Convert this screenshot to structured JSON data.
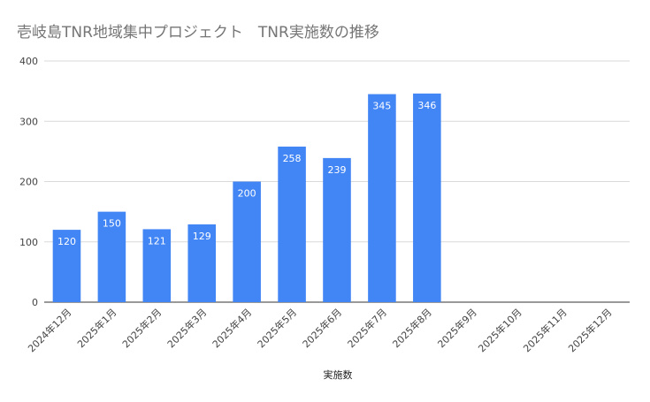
{
  "chart_data": {
    "type": "bar",
    "title": "壱岐島TNR地域集中プロジェクト　TNR実施数の推移",
    "xlabel": "実施数",
    "ylabel": "",
    "ylim": [
      0,
      400
    ],
    "yticks": [
      0,
      100,
      200,
      300,
      400
    ],
    "grid": true,
    "legend": "none",
    "color": "#4285f4",
    "categories": [
      "2024年12月",
      "2025年1月",
      "2025年2月",
      "2025年3月",
      "2025年4月",
      "2025年5月",
      "2025年6月",
      "2025年7月",
      "2025年8月",
      "2025年9月",
      "2025年10月",
      "2025年11月",
      "2025年12月"
    ],
    "values": [
      120,
      150,
      121,
      129,
      200,
      258,
      239,
      345,
      346,
      null,
      null,
      null,
      null
    ]
  }
}
